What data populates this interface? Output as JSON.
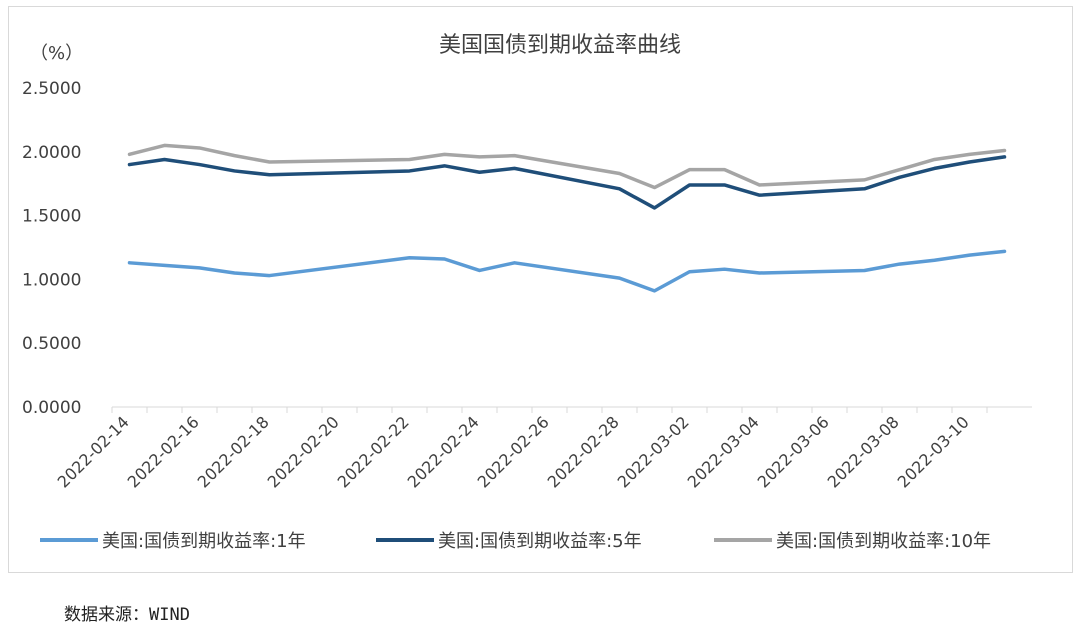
{
  "chart_data": {
    "type": "line",
    "title": "美国国债到期收益率曲线",
    "unit_label": "（%）",
    "ylim": [
      0,
      2.5
    ],
    "y_ticks": [
      "0.0000",
      "0.5000",
      "1.0000",
      "1.5000",
      "2.0000",
      "2.5000"
    ],
    "x_tick_labels": [
      "2022-02-14",
      "2022-02-16",
      "2022-02-18",
      "2022-02-20",
      "2022-02-22",
      "2022-02-24",
      "2022-02-26",
      "2022-02-28",
      "2022-03-02",
      "2022-03-04",
      "2022-03-06",
      "2022-03-08",
      "2022-03-10"
    ],
    "x": [
      "2022-02-14",
      "2022-02-15",
      "2022-02-16",
      "2022-02-17",
      "2022-02-18",
      "2022-02-22",
      "2022-02-23",
      "2022-02-24",
      "2022-02-25",
      "2022-02-28",
      "2022-03-01",
      "2022-03-02",
      "2022-03-03",
      "2022-03-04",
      "2022-03-07",
      "2022-03-08",
      "2022-03-09",
      "2022-03-10",
      "2022-03-11"
    ],
    "series": [
      {
        "name": "美国:国债到期收益率:1年",
        "color": "#5b9bd5",
        "values": [
          1.13,
          1.11,
          1.09,
          1.05,
          1.03,
          1.17,
          1.16,
          1.07,
          1.13,
          1.01,
          0.91,
          1.06,
          1.08,
          1.05,
          1.07,
          1.12,
          1.15,
          1.19,
          1.22
        ]
      },
      {
        "name": "美国:国债到期收益率:5年",
        "color": "#1f4e79",
        "values": [
          1.9,
          1.94,
          1.9,
          1.85,
          1.82,
          1.85,
          1.89,
          1.84,
          1.87,
          1.71,
          1.56,
          1.74,
          1.74,
          1.66,
          1.71,
          1.8,
          1.87,
          1.92,
          1.96
        ]
      },
      {
        "name": "美国:国债到期收益率:10年",
        "color": "#a5a5a5",
        "values": [
          1.98,
          2.05,
          2.03,
          1.97,
          1.92,
          1.94,
          1.98,
          1.96,
          1.97,
          1.83,
          1.72,
          1.86,
          1.86,
          1.74,
          1.78,
          1.86,
          1.94,
          1.98,
          2.01
        ]
      }
    ],
    "grid": false,
    "legend_position": "bottom"
  },
  "source_note": "数据来源：WIND"
}
